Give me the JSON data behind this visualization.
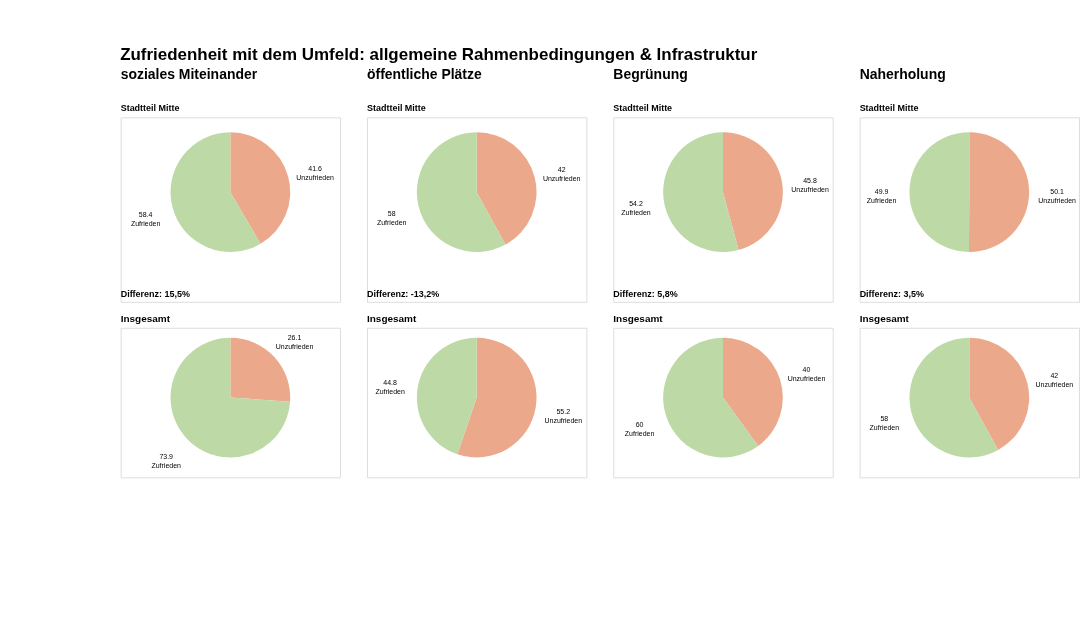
{
  "chart_data": [
    {
      "type": "pie",
      "title": "soziales Miteinander",
      "subtitle": "Stadtteil Mitte",
      "annotations": [
        "Zufriedenheit mit dem Umfeld: allgemeine Rahmenbedingungen & Infrastruktur",
        "Differenz:   15,5%"
      ],
      "categories": [
        "Unzufrieden",
        "Zufrieden"
      ],
      "values": [
        41.6,
        58.4
      ],
      "colors": [
        "#eca88a",
        "#bcd9a6"
      ],
      "data_labels": true
    },
    {
      "type": "pie",
      "title": "Insgesamt",
      "categories": [
        "Unzufrieden",
        "Zufrieden"
      ],
      "values": [
        26.1,
        73.9
      ],
      "colors": [
        "#eca88a",
        "#bcd9a6"
      ],
      "data_labels": true
    },
    {
      "type": "pie",
      "title": "öffentliche Plätze",
      "subtitle": "Stadtteil Mitte",
      "annotations": [
        "Differenz:   -13,2%"
      ],
      "categories": [
        "Unzufrieden",
        "Zufrieden"
      ],
      "values": [
        42,
        58
      ],
      "colors": [
        "#eca88a",
        "#bcd9a6"
      ],
      "data_labels": true
    },
    {
      "type": "pie",
      "title": "Insgesamt",
      "categories": [
        "Unzufrieden",
        "Zufrieden"
      ],
      "values": [
        55.2,
        44.8
      ],
      "colors": [
        "#eca88a",
        "#bcd9a6"
      ],
      "data_labels": true
    },
    {
      "type": "pie",
      "title": "Begrünung",
      "subtitle": "Stadtteil Mitte",
      "annotations": [
        "Differenz:   5,8%"
      ],
      "categories": [
        "Unzufrieden",
        "Zufrieden"
      ],
      "values": [
        45.8,
        54.2
      ],
      "colors": [
        "#eca88a",
        "#bcd9a6"
      ],
      "data_labels": true
    },
    {
      "type": "pie",
      "title": "Insgesamt",
      "categories": [
        "Unzufrieden",
        "Zufrieden"
      ],
      "values": [
        40,
        60
      ],
      "colors": [
        "#eca88a",
        "#bcd9a6"
      ],
      "data_labels": true
    },
    {
      "type": "pie",
      "title": "Naherholung",
      "subtitle": "Stadtteil Mitte",
      "annotations": [
        "Differenz:   3,5%"
      ],
      "categories": [
        "Unzufrieden",
        "Zufrieden"
      ],
      "values": [
        50.1,
        49.9
      ],
      "colors": [
        "#eca88a",
        "#bcd9a6"
      ],
      "data_labels": true
    },
    {
      "type": "pie",
      "title": "Insgesamt",
      "categories": [
        "Unzufrieden",
        "Zufrieden"
      ],
      "values": [
        42,
        58
      ],
      "colors": [
        "#eca88a",
        "#bcd9a6"
      ],
      "data_labels": true
    }
  ]
}
